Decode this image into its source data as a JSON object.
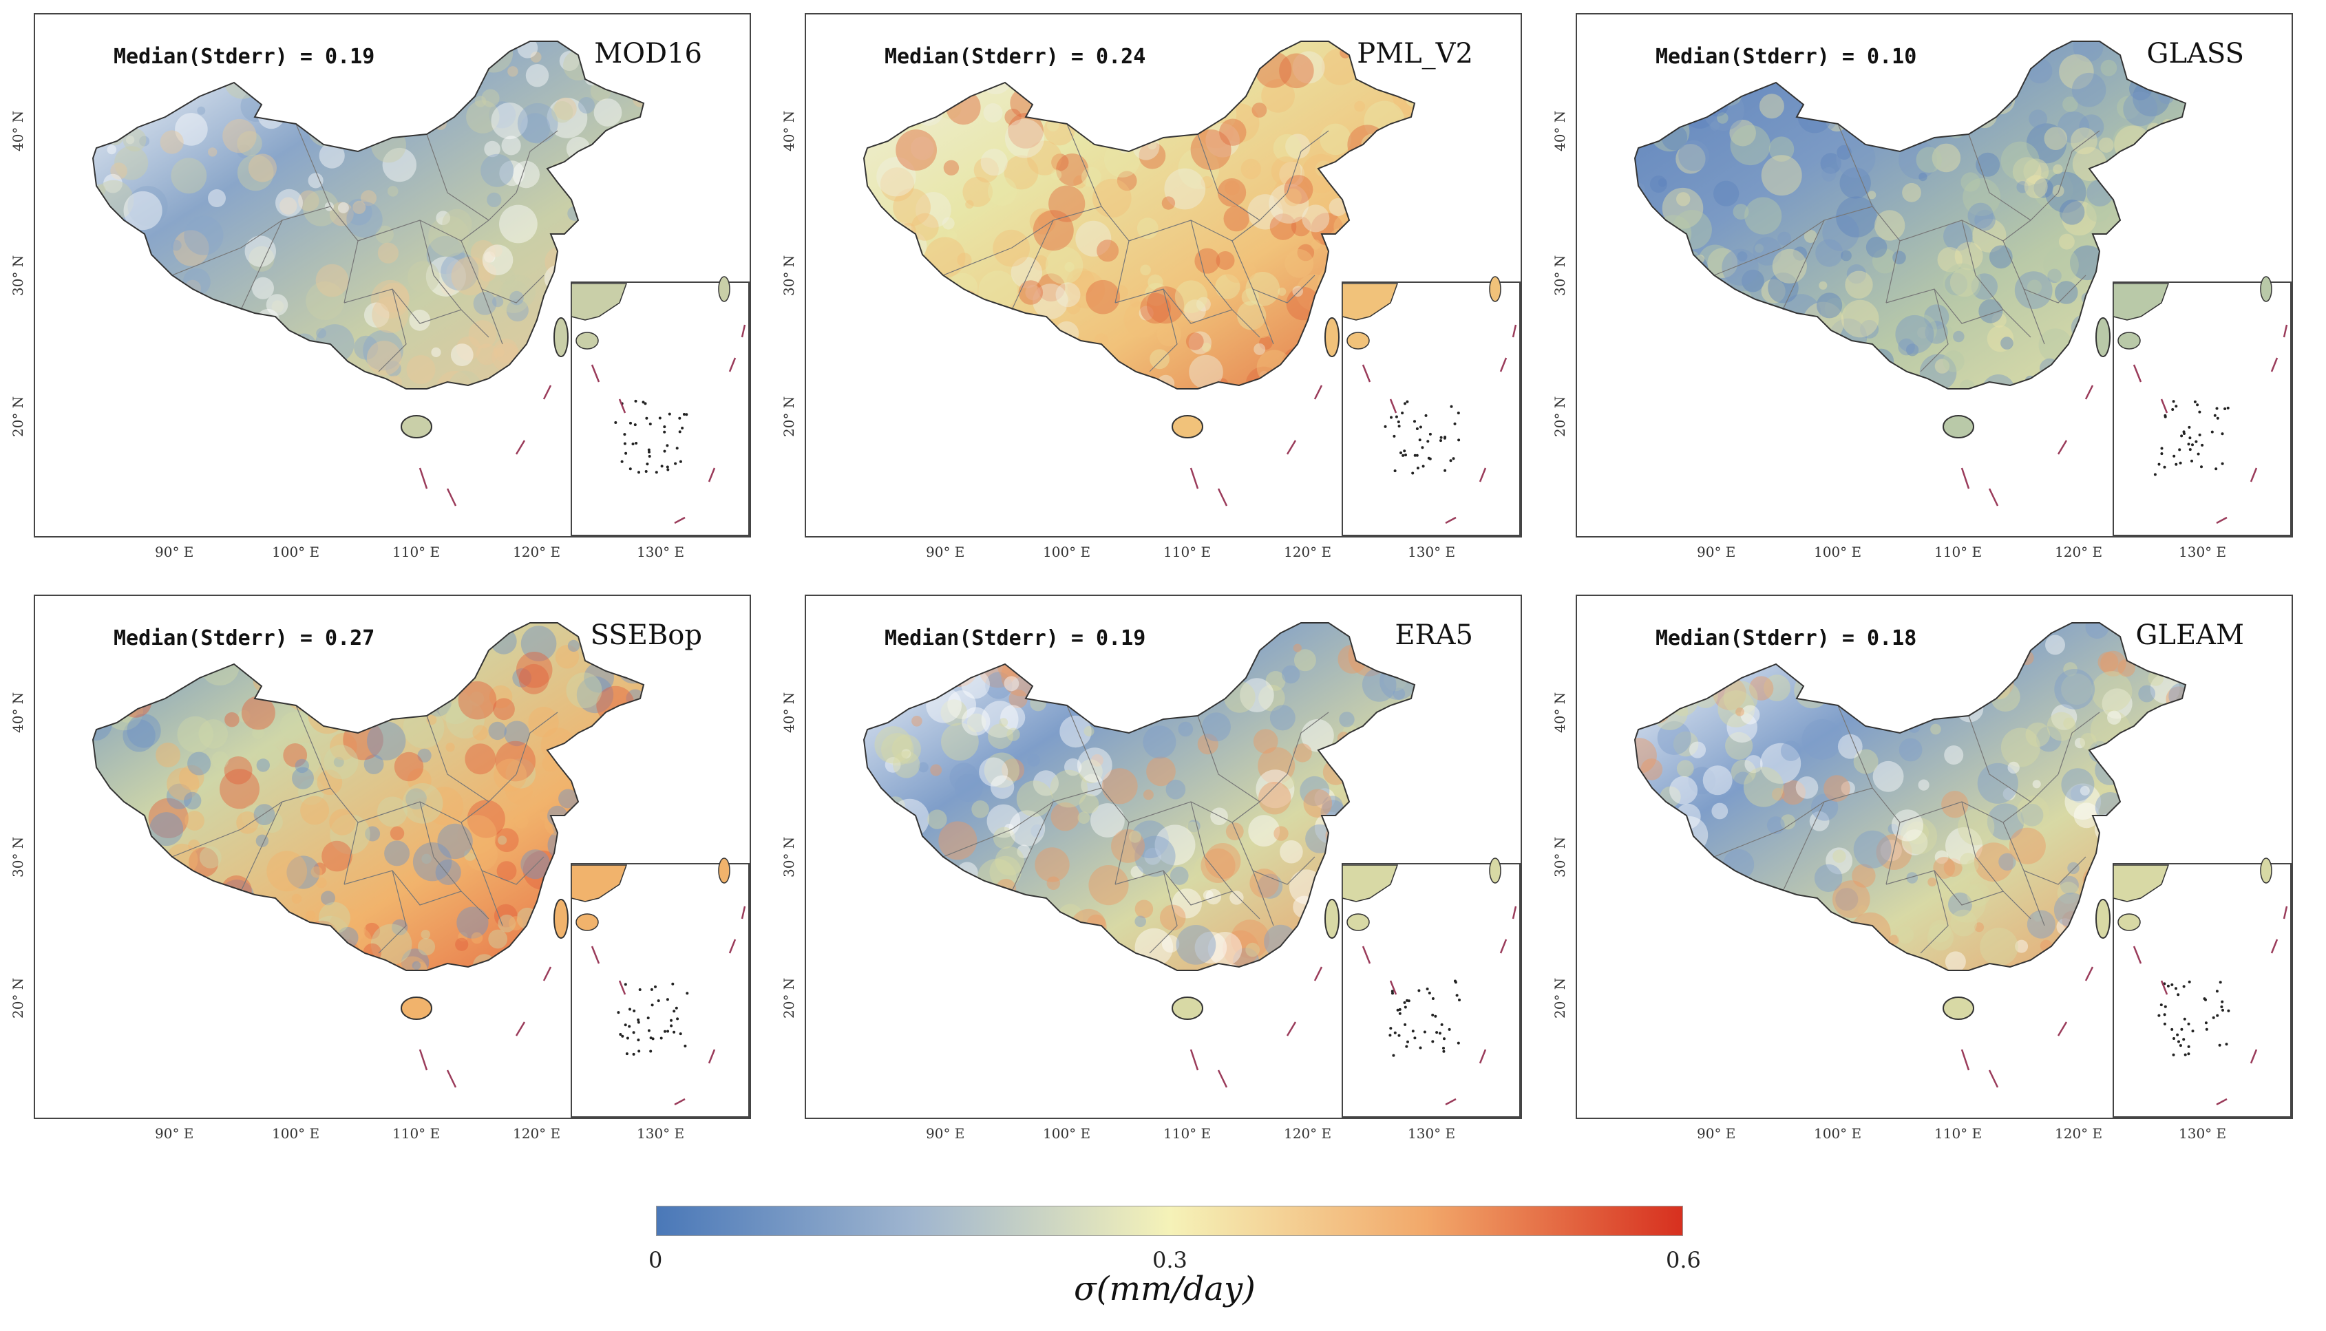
{
  "figure": {
    "panels": [
      {
        "id": "mod16",
        "model": "MOD16",
        "median_label": "Median(Stderr) = 0.19",
        "palette": "mixed-blue-white"
      },
      {
        "id": "pmlv2",
        "model": "PML_V2",
        "median_label": "Median(Stderr) = 0.24",
        "palette": "yellow-orange"
      },
      {
        "id": "glass",
        "model": "GLASS",
        "median_label": "Median(Stderr) = 0.10",
        "palette": "blue"
      },
      {
        "id": "ssebop",
        "model": "SSEBop",
        "median_label": "Median(Stderr) = 0.27",
        "palette": "orange-red"
      },
      {
        "id": "era5",
        "model": "ERA5",
        "median_label": "Median(Stderr) = 0.19",
        "palette": "blue-yellow"
      },
      {
        "id": "gleam",
        "model": "GLEAM",
        "median_label": "Median(Stderr) = 0.18",
        "palette": "blue-yellow"
      }
    ],
    "x_ticks": [
      "90° E",
      "100° E",
      "110° E",
      "120° E"
    ],
    "inset_x_tick": "130° E",
    "y_ticks": [
      "40° N",
      "30° N",
      "20° N"
    ]
  },
  "colorbar": {
    "ticks": [
      "0",
      "0.3",
      "0.6"
    ],
    "label": "σ(mm/day)",
    "colors": {
      "low": "#4a78b8",
      "mid": "#f5f2b8",
      "high": "#d7301f"
    }
  }
}
